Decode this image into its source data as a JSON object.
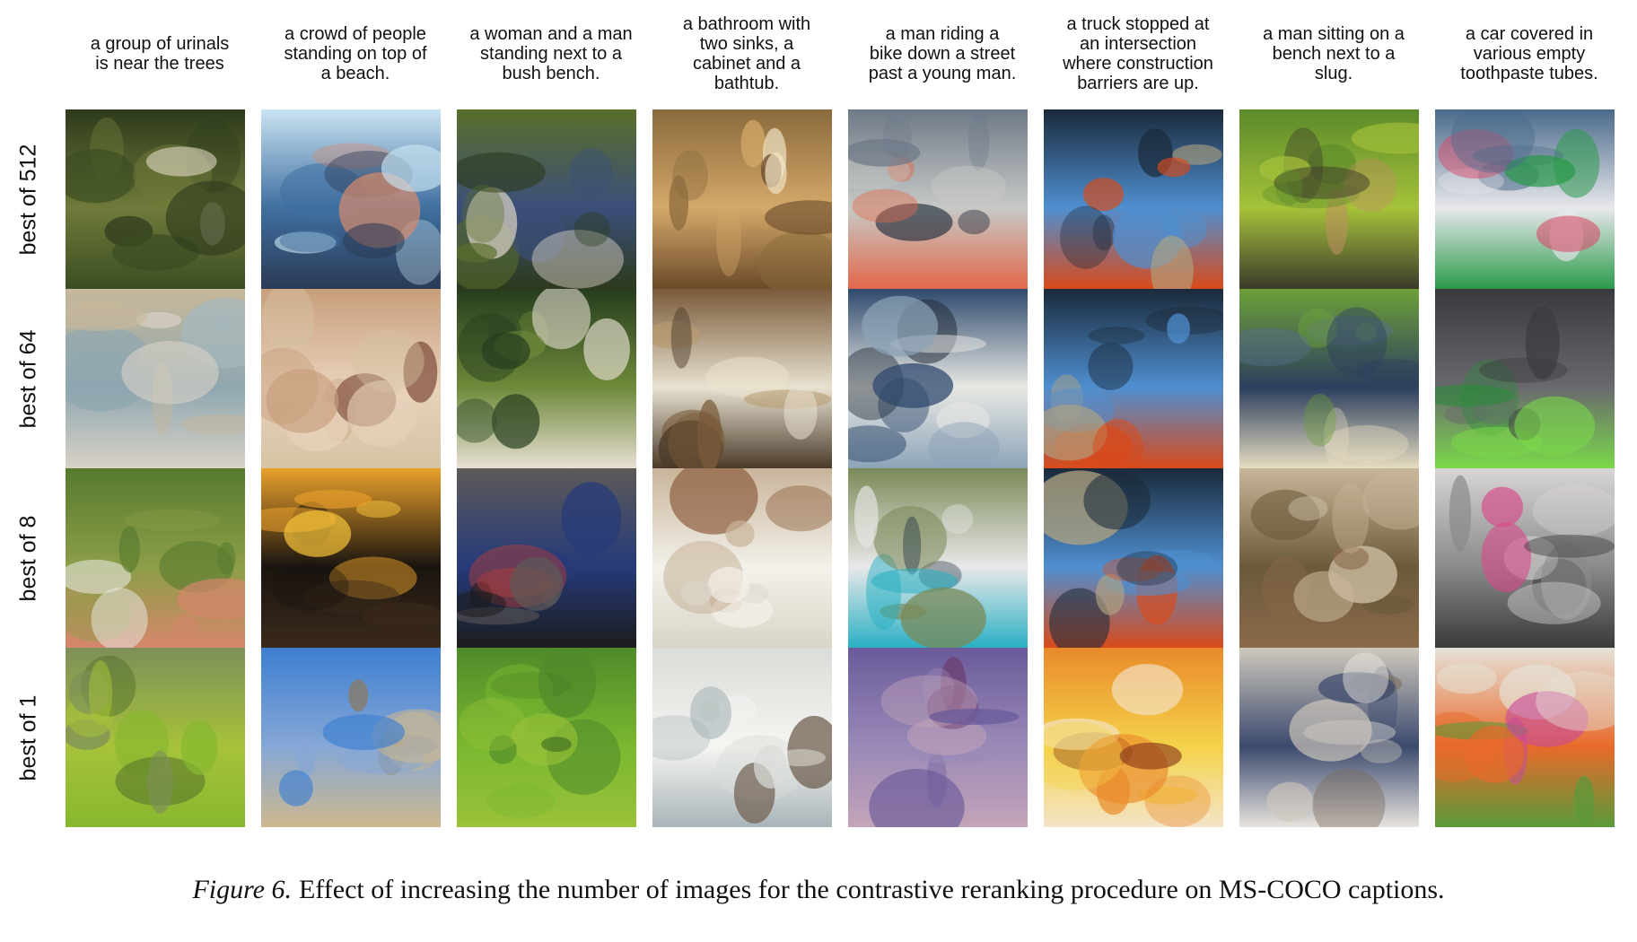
{
  "captions": [
    "a group of urinals\nis near the trees",
    "a crowd of people\nstanding on top of\na beach.",
    "a woman and a man\nstanding next to a\nbush bench.",
    "a bathroom with\ntwo sinks, a\ncabinet and a\nbathtub.",
    "a man riding a\nbike down a street\npast a young man.",
    "a truck stopped at\nan intersection\nwhere construction\nbarriers are up.",
    "a man sitting on a\nbench next to a\nslug.",
    "a car covered in\nvarious empty\ntoothpaste tubes."
  ],
  "row_labels": [
    "best of 512",
    "best of 64",
    "best of 8",
    "best of 1"
  ],
  "figure_caption": {
    "number": "Figure 6.",
    "text": "Effect of increasing the number of images for the contrastive reranking procedure on MS-COCO captions."
  },
  "palettes": [
    [
      "#2e3b1c",
      "#6f7a3a",
      "#f3e9da",
      "#3b4d22",
      "#c7b89a",
      "#8ea7b0",
      "#a4b8be",
      "#d9d2c7",
      "#567a2e",
      "#8c9e48",
      "#e7e8e3",
      "#d6866b",
      "#7e8f59",
      "#a6c23a",
      "#4f6d2a",
      "#87b82f"
    ],
    [
      "#c9e3f2",
      "#3f6fa0",
      "#d98a6b",
      "#2b3a55",
      "#c89e7c",
      "#e8d2bb",
      "#7d4a3a",
      "#d6c3a5",
      "#e9a02a",
      "#1a1410",
      "#f5c33a",
      "#3a2a1a",
      "#3d7fd0",
      "#86a7d6",
      "#8a7a5e",
      "#cdb890"
    ],
    [
      "#5a6e2b",
      "#3b4f7a",
      "#d9d0c4",
      "#2d3a1c",
      "#263d1e",
      "#6e8a3a",
      "#34502a",
      "#e8dfd3",
      "#5d5a58",
      "#263a7a",
      "#b23d3a",
      "#1c1c1c",
      "#4f8a2a",
      "#7ab830",
      "#2b5a1a",
      "#9bc23a"
    ],
    [
      "#8a6a3c",
      "#d4a86a",
      "#f2e6c8",
      "#6b4a2a",
      "#7a5a3a",
      "#e9e2d0",
      "#b89a6e",
      "#4a3a2a",
      "#c9b49a",
      "#f3f1ea",
      "#8a5a3a",
      "#d9d4c7",
      "#d9dcd8",
      "#f5f5f2",
      "#6b5a4a",
      "#a9b4b8"
    ],
    [
      "#6f7a88",
      "#c7c9c6",
      "#1f2a3a",
      "#e2684a",
      "#2f4a6e",
      "#e8e8e4",
      "#1f2a38",
      "#8da4b8",
      "#7a8a58",
      "#e8e8e8",
      "#2a3a48",
      "#2ab0c4",
      "#6a5a9a",
      "#9a8ab8",
      "#6a3a6a",
      "#c4a4b8"
    ],
    [
      "#1b2a3a",
      "#4f8fd0",
      "#b2a480",
      "#d94a1a",
      "#1b2a3a",
      "#4f8fd0",
      "#b2a480",
      "#d94a1a",
      "#1b2a3a",
      "#4f8fd0",
      "#b2a480",
      "#d94a1a",
      "#e98a2a",
      "#f5d24a",
      "#8a3a1a",
      "#f3e4c8"
    ],
    [
      "#5a8a2a",
      "#a6c23a",
      "#c09060",
      "#3b3a2a",
      "#6ea03a",
      "#2c3f5e",
      "#5b7090",
      "#e6dcc0",
      "#c8b69a",
      "#6b5a3a",
      "#d9cbb0",
      "#8a6a4a",
      "#cfc8bc",
      "#3b4a6e",
      "#7a6a5a",
      "#e8e4de"
    ],
    [
      "#4a6a8a",
      "#e8e8ec",
      "#d84a6a",
      "#2a9a4a",
      "#3a3a3e",
      "#6a6a6e",
      "#2a8a3a",
      "#7ad84a",
      "#d8d6d4",
      "#8a8a8a",
      "#d84a8a",
      "#3a3a3a",
      "#e6e2d8",
      "#e86a2a",
      "#c84a9a",
      "#5a9a3a"
    ]
  ]
}
